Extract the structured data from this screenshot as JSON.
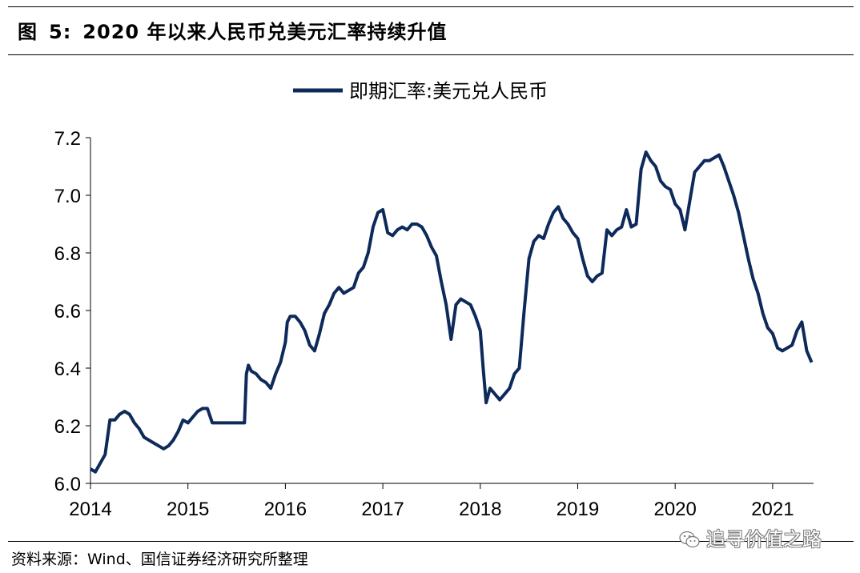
{
  "header": {
    "fig_label": "图",
    "fig_number": "5:",
    "title": "2020 年以来人民币兑美元汇率持续升值"
  },
  "footer": {
    "source": "资料来源：Wind、国信证券经济研究所整理"
  },
  "watermark": {
    "text": "追寻价值之路",
    "icon": "wechat-icon"
  },
  "chart_data": {
    "type": "line",
    "title": "",
    "xlabel": "",
    "ylabel": "",
    "ylim": [
      6.0,
      7.2
    ],
    "y_ticks": [
      "6.0",
      "6.2",
      "6.4",
      "6.6",
      "6.8",
      "7.0",
      "7.2"
    ],
    "x_ticks": [
      "2014",
      "2015",
      "2016",
      "2017",
      "2018",
      "2019",
      "2020",
      "2021"
    ],
    "xlim": [
      2014.0,
      2021.42
    ],
    "grid": false,
    "legend": {
      "position": "top-center"
    },
    "series": [
      {
        "name": "即期汇率:美元兑人民币",
        "color": "#0d2a5a",
        "x": [
          2014.0,
          2014.05,
          2014.1,
          2014.15,
          2014.2,
          2014.25,
          2014.3,
          2014.35,
          2014.4,
          2014.45,
          2014.5,
          2014.55,
          2014.6,
          2014.65,
          2014.7,
          2014.75,
          2014.8,
          2014.85,
          2014.9,
          2014.95,
          2015.0,
          2015.05,
          2015.1,
          2015.15,
          2015.2,
          2015.25,
          2015.3,
          2015.4,
          2015.5,
          2015.58,
          2015.6,
          2015.62,
          2015.65,
          2015.7,
          2015.75,
          2015.8,
          2015.85,
          2015.9,
          2015.95,
          2016.0,
          2016.02,
          2016.05,
          2016.1,
          2016.15,
          2016.2,
          2016.25,
          2016.3,
          2016.35,
          2016.4,
          2016.45,
          2016.5,
          2016.55,
          2016.6,
          2016.65,
          2016.7,
          2016.75,
          2016.8,
          2016.85,
          2016.9,
          2016.95,
          2017.0,
          2017.05,
          2017.1,
          2017.15,
          2017.2,
          2017.25,
          2017.3,
          2017.35,
          2017.4,
          2017.45,
          2017.5,
          2017.55,
          2017.6,
          2017.65,
          2017.7,
          2017.75,
          2017.8,
          2017.85,
          2017.9,
          2017.95,
          2018.0,
          2018.03,
          2018.06,
          2018.1,
          2018.15,
          2018.2,
          2018.25,
          2018.3,
          2018.35,
          2018.4,
          2018.45,
          2018.5,
          2018.55,
          2018.6,
          2018.65,
          2018.7,
          2018.75,
          2018.8,
          2018.85,
          2018.9,
          2018.95,
          2019.0,
          2019.05,
          2019.1,
          2019.15,
          2019.2,
          2019.25,
          2019.3,
          2019.35,
          2019.4,
          2019.45,
          2019.5,
          2019.55,
          2019.6,
          2019.65,
          2019.7,
          2019.75,
          2019.8,
          2019.85,
          2019.9,
          2019.95,
          2020.0,
          2020.05,
          2020.1,
          2020.15,
          2020.2,
          2020.25,
          2020.3,
          2020.35,
          2020.4,
          2020.45,
          2020.5,
          2020.55,
          2020.6,
          2020.65,
          2020.7,
          2020.75,
          2020.8,
          2020.85,
          2020.9,
          2020.95,
          2021.0,
          2021.05,
          2021.1,
          2021.15,
          2021.2,
          2021.25,
          2021.3,
          2021.35,
          2021.4
        ],
        "y": [
          6.05,
          6.04,
          6.07,
          6.1,
          6.22,
          6.22,
          6.24,
          6.25,
          6.24,
          6.21,
          6.19,
          6.16,
          6.15,
          6.14,
          6.13,
          6.12,
          6.13,
          6.15,
          6.18,
          6.22,
          6.21,
          6.23,
          6.25,
          6.26,
          6.26,
          6.21,
          6.21,
          6.21,
          6.21,
          6.21,
          6.38,
          6.41,
          6.39,
          6.38,
          6.36,
          6.35,
          6.33,
          6.38,
          6.42,
          6.49,
          6.56,
          6.58,
          6.58,
          6.56,
          6.53,
          6.48,
          6.46,
          6.52,
          6.59,
          6.62,
          6.66,
          6.68,
          6.66,
          6.67,
          6.68,
          6.73,
          6.75,
          6.8,
          6.89,
          6.94,
          6.95,
          6.87,
          6.86,
          6.88,
          6.89,
          6.88,
          6.9,
          6.9,
          6.89,
          6.86,
          6.82,
          6.79,
          6.7,
          6.62,
          6.5,
          6.62,
          6.64,
          6.63,
          6.62,
          6.58,
          6.53,
          6.4,
          6.28,
          6.33,
          6.31,
          6.29,
          6.31,
          6.33,
          6.38,
          6.4,
          6.6,
          6.78,
          6.84,
          6.86,
          6.85,
          6.9,
          6.94,
          6.96,
          6.92,
          6.9,
          6.87,
          6.85,
          6.78,
          6.72,
          6.7,
          6.72,
          6.73,
          6.88,
          6.86,
          6.88,
          6.89,
          6.95,
          6.89,
          6.9,
          7.09,
          7.15,
          7.12,
          7.1,
          7.05,
          7.03,
          7.02,
          6.97,
          6.95,
          6.88,
          6.98,
          7.08,
          7.1,
          7.12,
          7.12,
          7.13,
          7.14,
          7.1,
          7.05,
          7.0,
          6.94,
          6.86,
          6.78,
          6.71,
          6.66,
          6.59,
          6.54,
          6.52,
          6.47,
          6.46,
          6.47,
          6.48,
          6.53,
          6.56,
          6.46,
          6.42
        ]
      }
    ]
  }
}
